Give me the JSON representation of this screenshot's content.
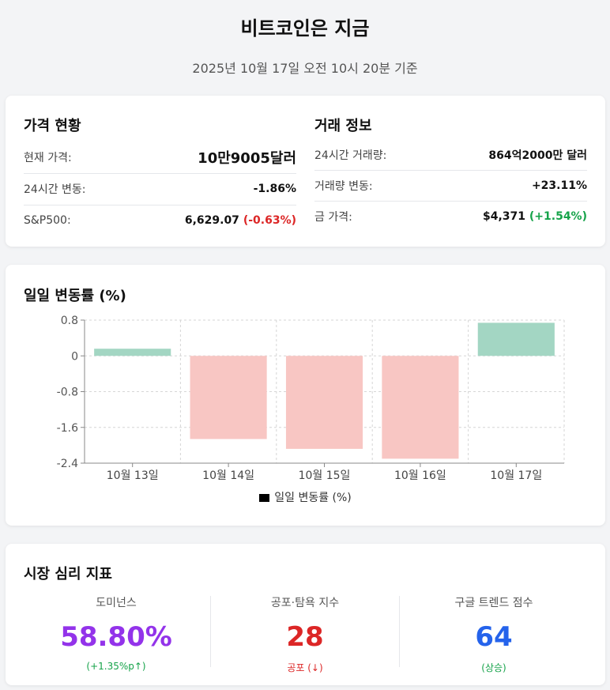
{
  "header": {
    "title": "비트코인은 지금",
    "subtitle": "2025년 10월 17일 오전 10시 20분 기준"
  },
  "price_status": {
    "title": "가격 현황",
    "rows": [
      {
        "label": "현재 가격:",
        "value": "10만9005달러"
      },
      {
        "label": "24시간 변동:",
        "value": "-1.86%"
      },
      {
        "label": "S&P500:",
        "value": "6,629.07",
        "change": "(-0.63%)"
      }
    ]
  },
  "trade_info": {
    "title": "거래 정보",
    "rows": [
      {
        "label": "24시간 거래량:",
        "value": "864억2000만 달러"
      },
      {
        "label": "거래량 변동:",
        "value": "+23.11%"
      },
      {
        "label": "금 가격:",
        "value": "$4,371",
        "change": "(+1.54%)"
      }
    ]
  },
  "chart_section": {
    "title": "일일 변동률 (%)"
  },
  "chart_data": {
    "type": "bar",
    "categories": [
      "10월 13일",
      "10월 14일",
      "10월 15일",
      "10월 16일",
      "10월 17일"
    ],
    "values": [
      0.16,
      -1.86,
      -2.08,
      -2.3,
      0.74
    ],
    "yticks": [
      "0.8",
      "0",
      "-0.8",
      "-1.6",
      "-2.4"
    ],
    "ylim": [
      -2.4,
      0.8
    ],
    "legend": "일일 변동률 (%)",
    "grid": true,
    "colors": {
      "positive": "#a3d6c3",
      "negative": "#f8c6c3"
    }
  },
  "sentiment": {
    "title": "시장 심리 지표",
    "metrics": [
      {
        "label": "도미넌스",
        "value": "58.80%",
        "sub": "(+1.35%p↑)"
      },
      {
        "label": "공포·탐욕 지수",
        "value": "28",
        "sub": "공포 (↓)"
      },
      {
        "label": "구글 트렌드 점수",
        "value": "64",
        "sub": "(상승)"
      }
    ]
  },
  "colors": {
    "negative": "#dc2626",
    "positive": "#16a34a",
    "dominance": "#9333ea",
    "trend": "#2563eb"
  }
}
